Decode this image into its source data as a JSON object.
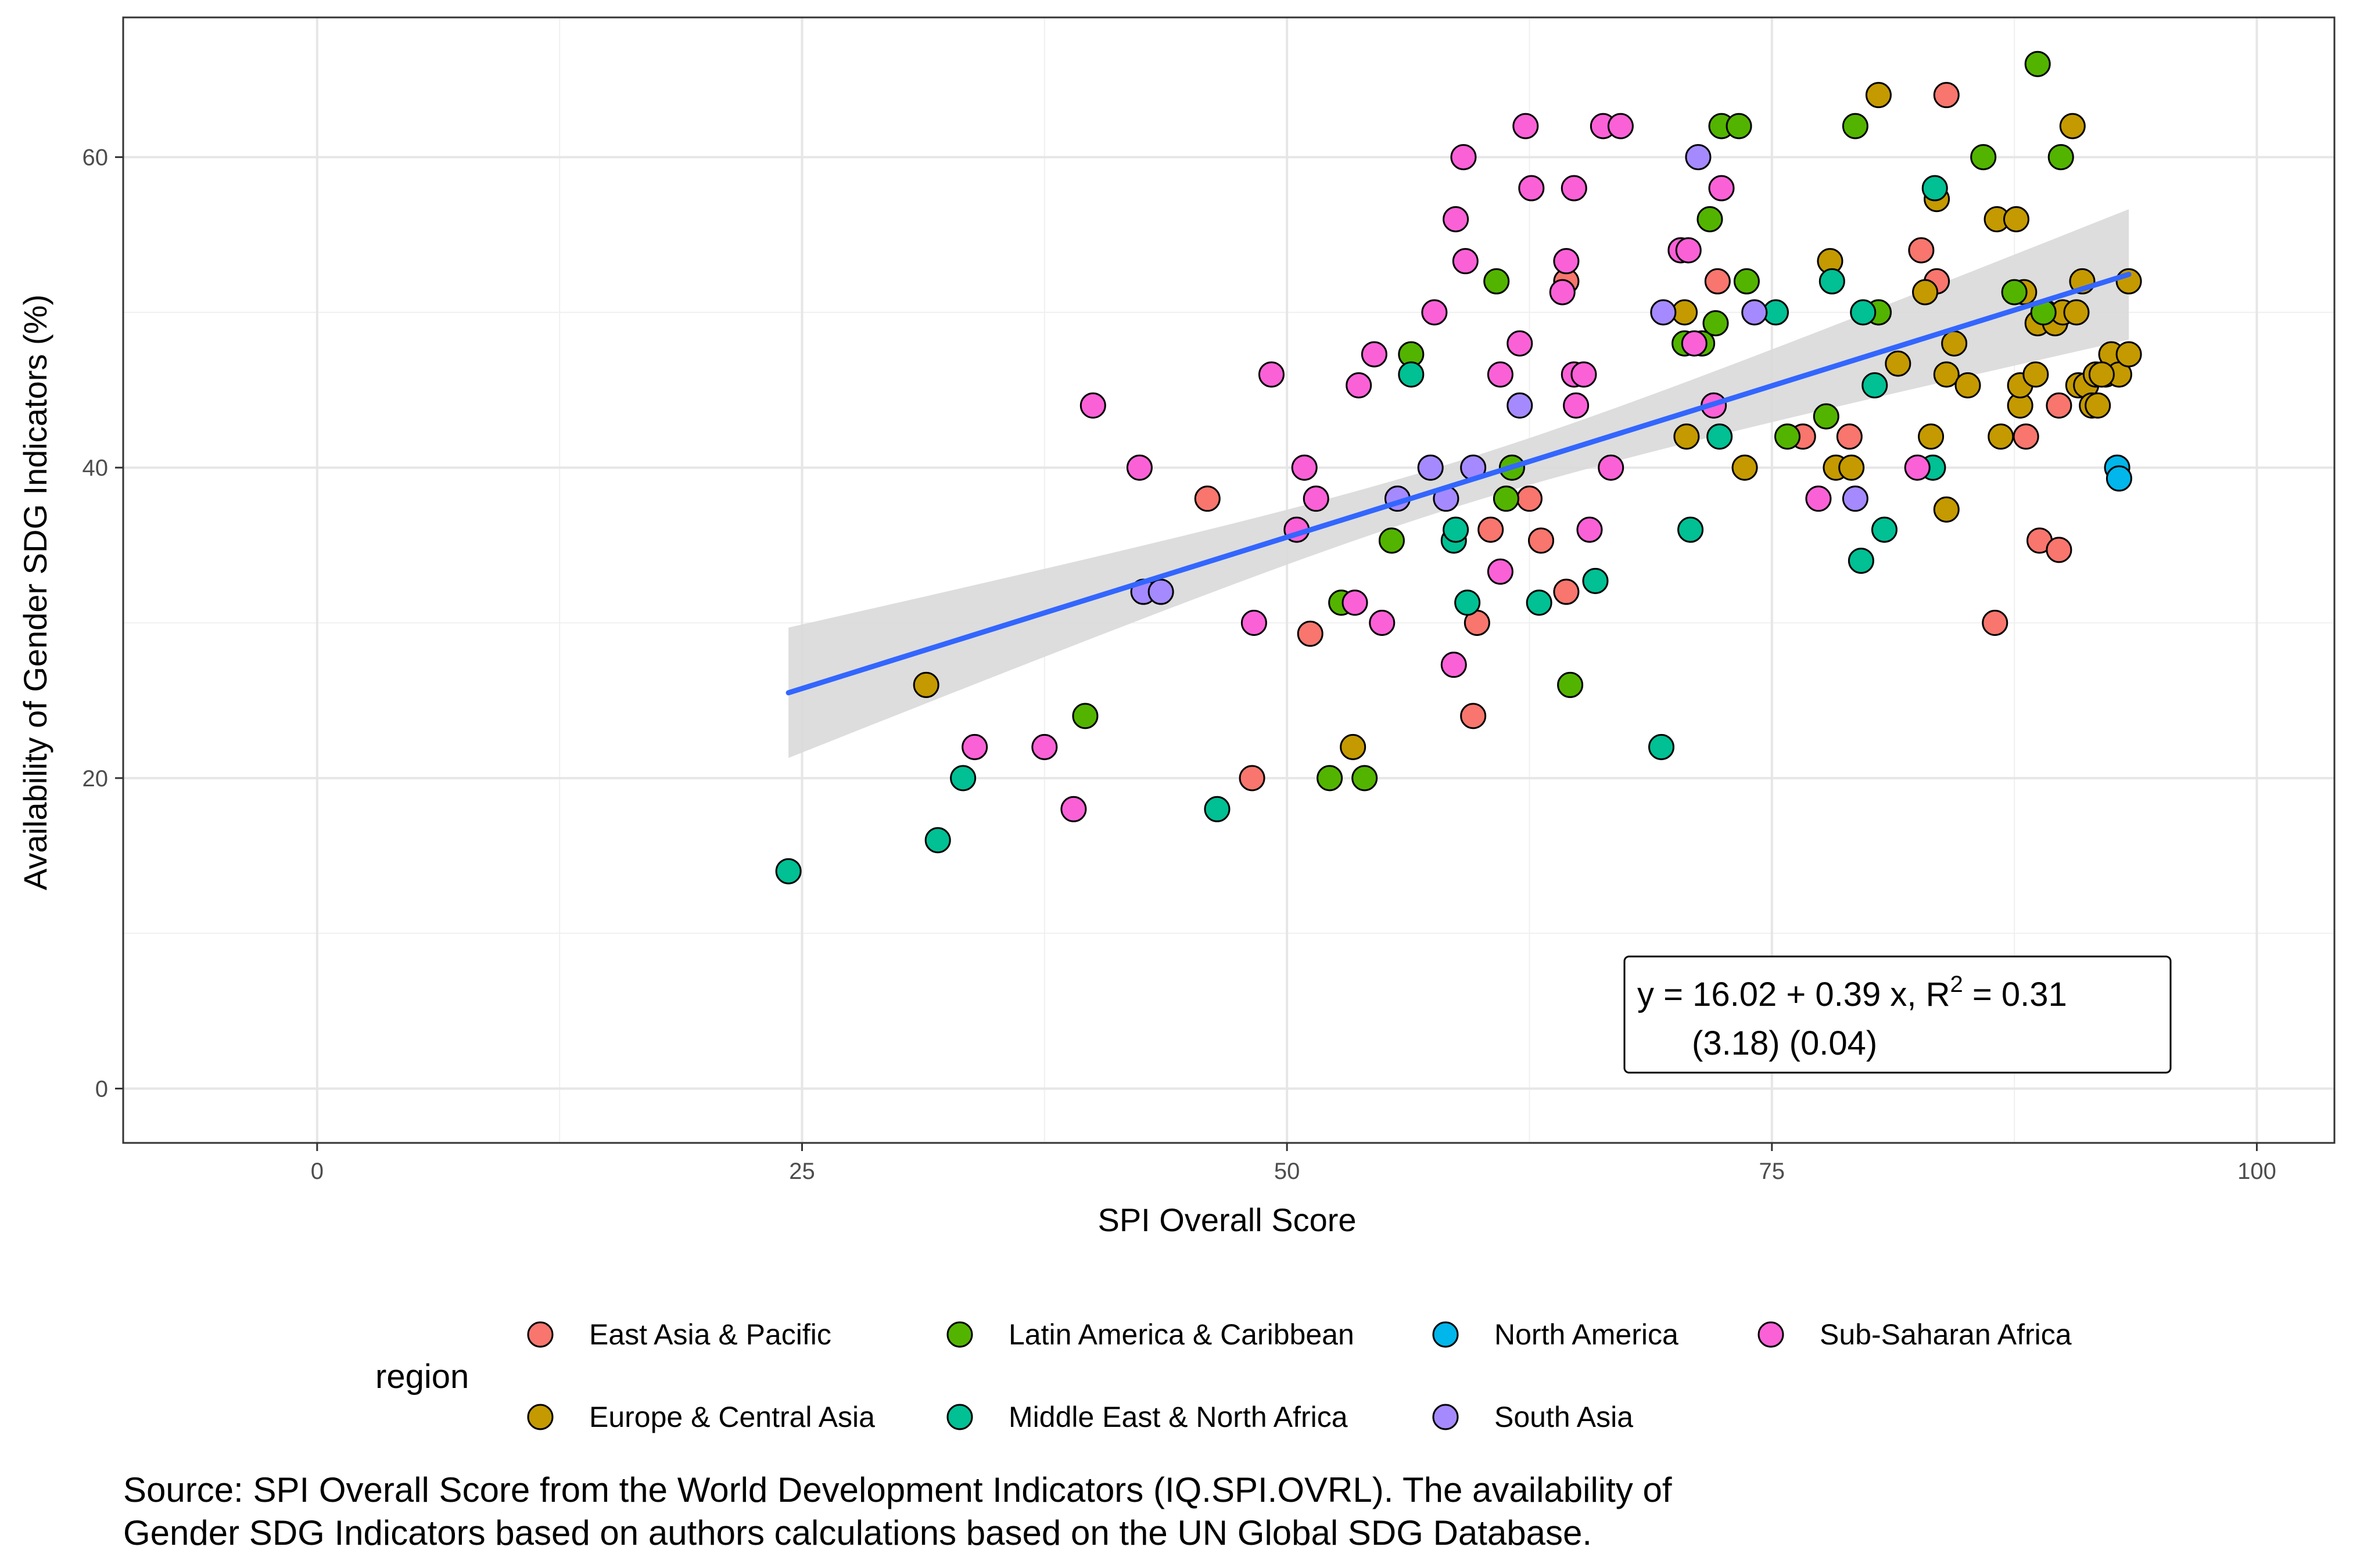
{
  "chart_data": {
    "type": "scatter",
    "xlabel": "SPI Overall Score",
    "ylabel": "Availability of Gender SDG Indicators (%)",
    "xlim": [
      -10,
      104
    ],
    "ylim": [
      -3.5,
      69
    ],
    "x_ticks": [
      0,
      25,
      50,
      75,
      100
    ],
    "y_ticks": [
      0,
      20,
      40,
      60
    ],
    "x_tick_labels": [
      "0",
      "25",
      "50",
      "75",
      "100"
    ],
    "y_tick_labels": [
      "0",
      "20",
      "40",
      "60"
    ],
    "grid": true,
    "legend": {
      "title": "region",
      "position": "bottom",
      "entries": [
        {
          "name": "East Asia & Pacific",
          "color": "#F8766D"
        },
        {
          "name": "Europe & Central Asia",
          "color": "#C49A00"
        },
        {
          "name": "Latin America & Caribbean",
          "color": "#53B400"
        },
        {
          "name": "Middle East & North Africa",
          "color": "#00C094"
        },
        {
          "name": "North America",
          "color": "#00B6EB"
        },
        {
          "name": "South Asia",
          "color": "#A58AFF"
        },
        {
          "name": "Sub-Saharan Africa",
          "color": "#FB61D7"
        }
      ]
    },
    "fit": {
      "intercept": 16.02,
      "slope": 0.39,
      "x_range": [
        24.3,
        93.4
      ],
      "band_half_width_at_ends": 4.2,
      "band_half_width_at_center": 1.45,
      "color": "#3366FF",
      "band_color": "#D9D9D9"
    },
    "annotation": {
      "line1": "y = 16.02 + 0.39 x, R",
      "line1_sup": "2",
      "line1_end": " = 0.31",
      "line2": "(3.18) (0.04)"
    },
    "caption": {
      "line1": "Source: SPI Overall Score from the World Development Indicators (IQ.SPI.OVRL). The availability of",
      "line2": "Gender SDG Indicators based on authors calculations based on the UN Global SDG Database."
    },
    "series": [
      {
        "name": "East Asia & Pacific",
        "color": "#F8766D",
        "points": [
          [
            45.9,
            38
          ],
          [
            48.2,
            20
          ],
          [
            51.2,
            29.3
          ],
          [
            59.6,
            24
          ],
          [
            59.8,
            30
          ],
          [
            60.5,
            36
          ],
          [
            62.5,
            38
          ],
          [
            63.1,
            35.3
          ],
          [
            64.4,
            52
          ],
          [
            64.4,
            32
          ],
          [
            72.2,
            52
          ],
          [
            76.6,
            42
          ],
          [
            79.0,
            42
          ],
          [
            82.7,
            54
          ],
          [
            83.5,
            52
          ],
          [
            84.0,
            64
          ],
          [
            86.5,
            30
          ],
          [
            88.1,
            42
          ],
          [
            88.8,
            35.3
          ],
          [
            89.8,
            34.7
          ],
          [
            89.8,
            44
          ]
        ]
      },
      {
        "name": "Europe & Central Asia",
        "color": "#C49A00",
        "points": [
          [
            31.4,
            26
          ],
          [
            53.4,
            22
          ],
          [
            70.5,
            50
          ],
          [
            70.6,
            42
          ],
          [
            73.6,
            40
          ],
          [
            78.0,
            53.3
          ],
          [
            78.3,
            40
          ],
          [
            79.1,
            40
          ],
          [
            80.5,
            50
          ],
          [
            80.5,
            64
          ],
          [
            81.5,
            46.7
          ],
          [
            82.9,
            51.3
          ],
          [
            83.2,
            42
          ],
          [
            83.5,
            57.3
          ],
          [
            84.0,
            37.3
          ],
          [
            84.0,
            46
          ],
          [
            84.4,
            48
          ],
          [
            85.1,
            45.3
          ],
          [
            86.6,
            56
          ],
          [
            86.8,
            42
          ],
          [
            87.6,
            56
          ],
          [
            87.8,
            44
          ],
          [
            87.8,
            45.3
          ],
          [
            88.0,
            51.3
          ],
          [
            88.6,
            46
          ],
          [
            88.7,
            49.3
          ],
          [
            89.1,
            50
          ],
          [
            89.6,
            49.3
          ],
          [
            90.0,
            50
          ],
          [
            90.5,
            62
          ],
          [
            90.7,
            50
          ],
          [
            90.8,
            45.3
          ],
          [
            91.0,
            52
          ],
          [
            91.2,
            45.3
          ],
          [
            91.5,
            44
          ],
          [
            91.7,
            46
          ],
          [
            91.8,
            44
          ],
          [
            92.2,
            46
          ],
          [
            92.5,
            47.3
          ],
          [
            92.9,
            46
          ],
          [
            93.4,
            52
          ],
          [
            93.4,
            47.3
          ],
          [
            92.0,
            46
          ]
        ]
      },
      {
        "name": "Latin America & Caribbean",
        "color": "#53B400",
        "points": [
          [
            39.6,
            24
          ],
          [
            52.2,
            20
          ],
          [
            52.8,
            31.3
          ],
          [
            54.0,
            20
          ],
          [
            55.4,
            35.3
          ],
          [
            56.4,
            47.3
          ],
          [
            60.8,
            52
          ],
          [
            61.3,
            38
          ],
          [
            61.6,
            40
          ],
          [
            64.6,
            26
          ],
          [
            70.5,
            48
          ],
          [
            71.4,
            48
          ],
          [
            71.8,
            56
          ],
          [
            72.1,
            49.3
          ],
          [
            72.4,
            62
          ],
          [
            73.3,
            62
          ],
          [
            73.7,
            52
          ],
          [
            75.8,
            42
          ],
          [
            77.8,
            43.3
          ],
          [
            79.3,
            62
          ],
          [
            80.5,
            50
          ],
          [
            85.9,
            60
          ],
          [
            87.5,
            51.3
          ],
          [
            88.7,
            66
          ],
          [
            89.9,
            60
          ],
          [
            89.0,
            50
          ]
        ]
      },
      {
        "name": "Middle East & North Africa",
        "color": "#00C094",
        "points": [
          [
            24.3,
            14
          ],
          [
            32.0,
            16
          ],
          [
            33.3,
            20
          ],
          [
            46.4,
            18
          ],
          [
            56.4,
            46
          ],
          [
            58.6,
            35.3
          ],
          [
            58.7,
            36
          ],
          [
            59.3,
            31.3
          ],
          [
            63.0,
            31.3
          ],
          [
            65.9,
            32.7
          ],
          [
            69.3,
            22
          ],
          [
            70.8,
            36
          ],
          [
            72.3,
            42
          ],
          [
            75.2,
            50
          ],
          [
            78.1,
            52
          ],
          [
            79.6,
            34
          ],
          [
            79.7,
            50
          ],
          [
            80.3,
            45.3
          ],
          [
            80.8,
            36
          ],
          [
            83.3,
            40
          ],
          [
            83.4,
            58
          ]
        ]
      },
      {
        "name": "North America",
        "color": "#00B6EB",
        "points": [
          [
            92.8,
            40
          ],
          [
            92.9,
            39.3
          ]
        ]
      },
      {
        "name": "South Asia",
        "color": "#A58AFF",
        "points": [
          [
            42.6,
            32
          ],
          [
            43.5,
            32
          ],
          [
            55.7,
            38
          ],
          [
            57.4,
            40
          ],
          [
            58.2,
            38
          ],
          [
            59.6,
            40
          ],
          [
            62.0,
            44
          ],
          [
            69.4,
            50
          ],
          [
            71.2,
            60
          ],
          [
            74.1,
            50
          ],
          [
            79.3,
            38
          ]
        ]
      },
      {
        "name": "Sub-Saharan Africa",
        "color": "#FB61D7",
        "points": [
          [
            33.9,
            22
          ],
          [
            37.5,
            22
          ],
          [
            39.0,
            18
          ],
          [
            40.0,
            44
          ],
          [
            42.4,
            40
          ],
          [
            48.3,
            30
          ],
          [
            49.2,
            46
          ],
          [
            50.5,
            36
          ],
          [
            50.9,
            40
          ],
          [
            51.5,
            38
          ],
          [
            53.5,
            31.3
          ],
          [
            53.7,
            45.3
          ],
          [
            54.5,
            47.3
          ],
          [
            54.9,
            30
          ],
          [
            57.6,
            50
          ],
          [
            58.6,
            27.3
          ],
          [
            58.7,
            56
          ],
          [
            59.1,
            60
          ],
          [
            59.2,
            53.3
          ],
          [
            61.0,
            33.3
          ],
          [
            61.0,
            46
          ],
          [
            62.0,
            48
          ],
          [
            62.3,
            62
          ],
          [
            62.6,
            58
          ],
          [
            64.2,
            51.3
          ],
          [
            64.4,
            53.3
          ],
          [
            64.8,
            58
          ],
          [
            64.8,
            46
          ],
          [
            64.9,
            44
          ],
          [
            65.3,
            46
          ],
          [
            65.6,
            36
          ],
          [
            66.7,
            40
          ],
          [
            66.3,
            62
          ],
          [
            67.2,
            62
          ],
          [
            70.3,
            54
          ],
          [
            70.7,
            54
          ],
          [
            71.0,
            48
          ],
          [
            72.0,
            44
          ],
          [
            72.4,
            58
          ],
          [
            77.4,
            38
          ],
          [
            82.5,
            40
          ]
        ]
      }
    ]
  }
}
